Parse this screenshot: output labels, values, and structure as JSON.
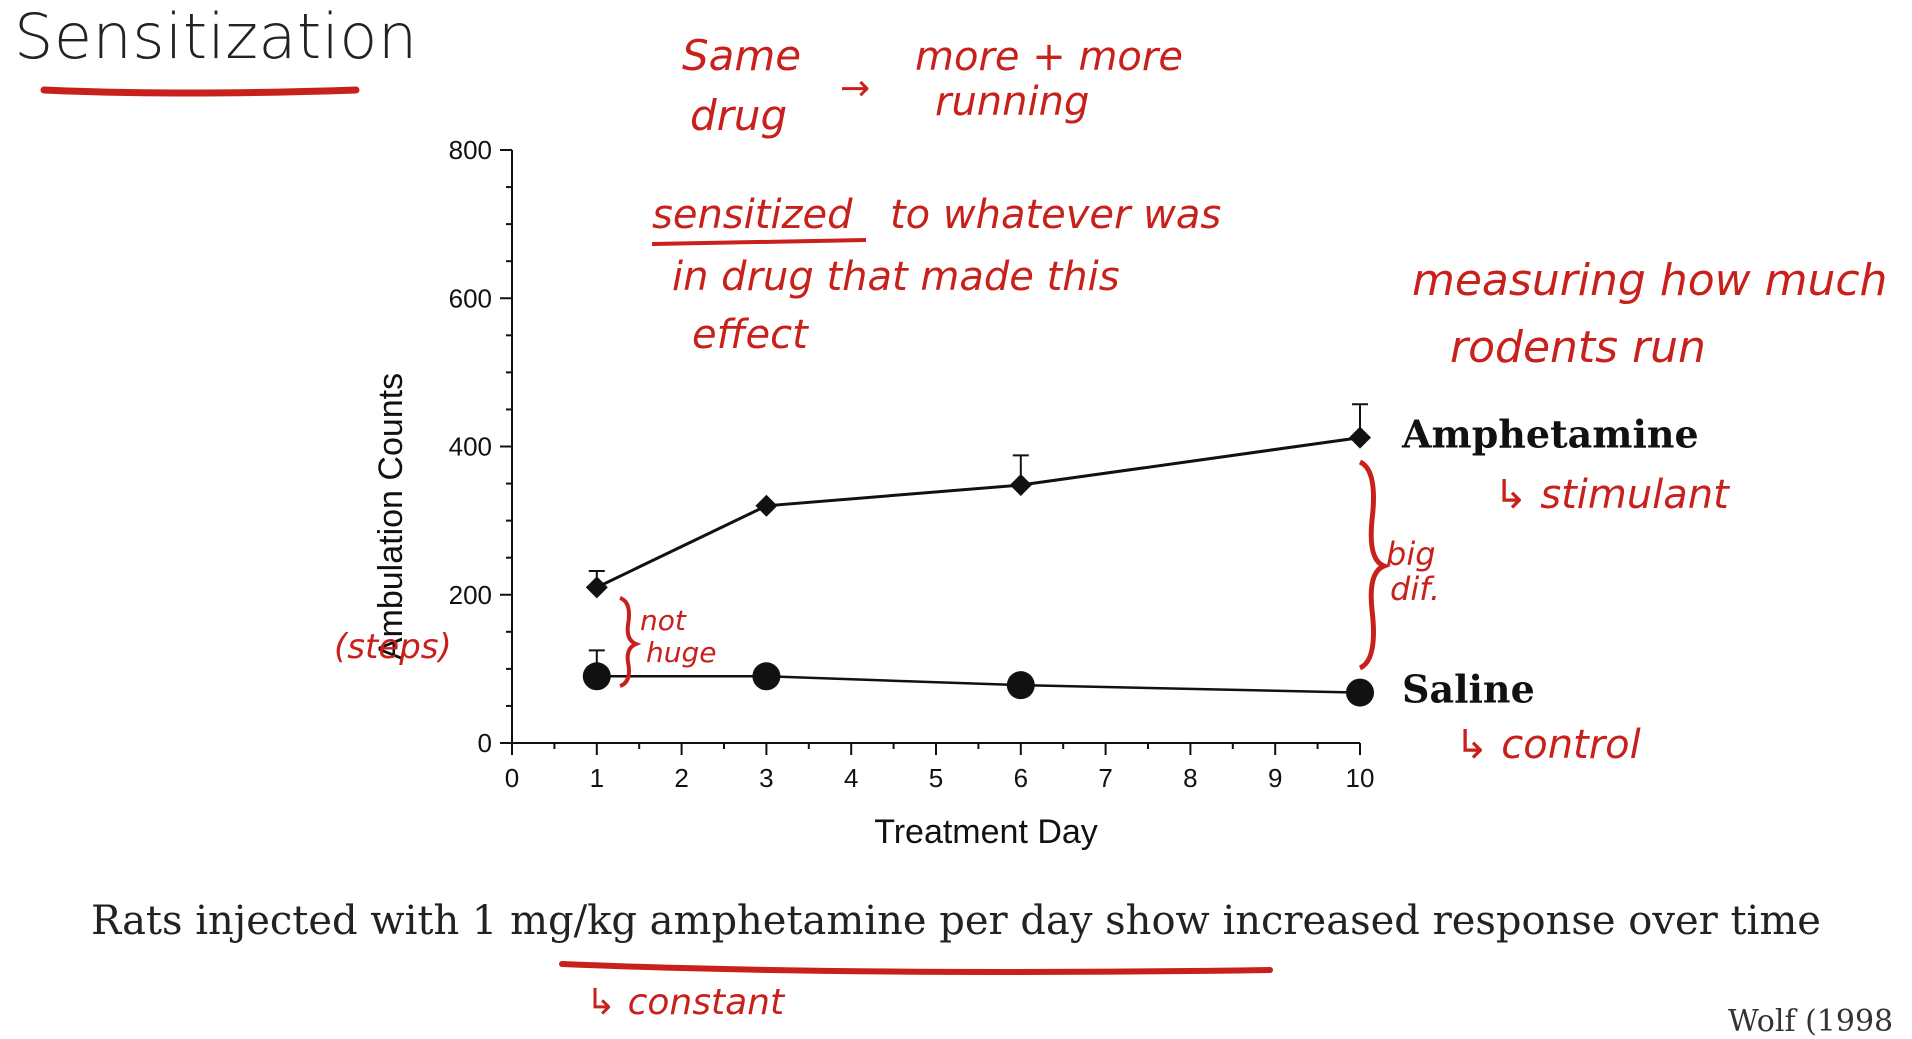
{
  "page": {
    "title": "Sensitization",
    "caption": "Rats injected with 1 mg/kg amphetamine per day show increased response over time",
    "citation": "Wolf (1998"
  },
  "annotations": {
    "colors": {
      "ink": "#c8201b"
    },
    "same_drug_1": "Same",
    "same_drug_2": "drug",
    "arrow": "→",
    "more_running_1": "more + more",
    "more_running_2": "running",
    "sensitized_word": "sensitized",
    "sensitized_rest": "to whatever was",
    "sensitized_2": "in drug that made this",
    "sensitized_3": "effect",
    "measuring_1": "measuring how much",
    "measuring_2": "rodents run",
    "stimulant": "↳ stimulant",
    "control": "↳ control",
    "big_diff_1": "big",
    "big_diff_2": "dif.",
    "not_huge_1": "not",
    "not_huge_2": "huge",
    "steps": "(steps)",
    "constant": "↳ constant"
  },
  "chart_data": {
    "type": "line",
    "title": "",
    "xlabel": "Treatment Day",
    "ylabel": "Ambulation Counts",
    "xlim": [
      0,
      10
    ],
    "ylim": [
      0,
      800
    ],
    "x_ticks": [
      0,
      1,
      2,
      3,
      4,
      5,
      6,
      7,
      8,
      9,
      10
    ],
    "y_ticks": [
      0,
      200,
      400,
      600,
      800
    ],
    "grid": false,
    "legend": "direct labels at right end of lines",
    "series": [
      {
        "name": "Amphetamine",
        "marker": "diamond",
        "x": [
          1,
          3,
          6,
          10
        ],
        "y": [
          210,
          320,
          348,
          412
        ],
        "error_up": [
          22,
          0,
          40,
          45
        ]
      },
      {
        "name": "Saline",
        "marker": "circle",
        "x": [
          1,
          3,
          6,
          10
        ],
        "y": [
          90,
          90,
          78,
          68
        ],
        "error_up": [
          35,
          0,
          0,
          0
        ]
      }
    ]
  }
}
